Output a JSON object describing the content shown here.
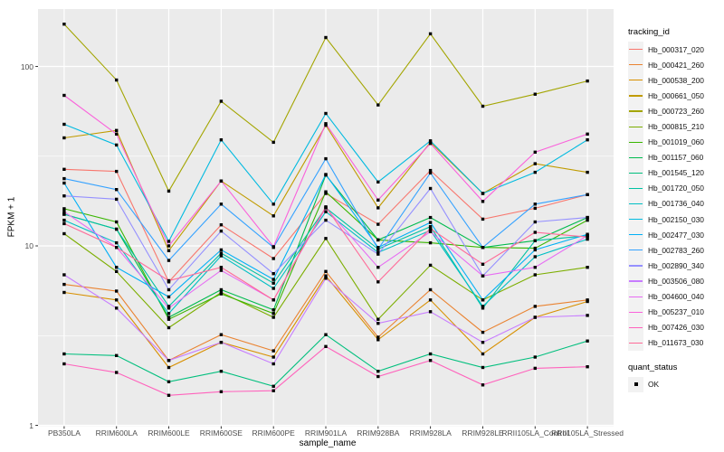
{
  "y_axis": {
    "title": "FPKM + 1",
    "ticks": [
      "1",
      "10",
      "100"
    ]
  },
  "x_axis": {
    "title": "sample_name"
  },
  "legend": {
    "color_title": "tracking_id",
    "shape_title": "quant_status",
    "shape_items": [
      {
        "label": "OK",
        "marker": "black-square"
      }
    ]
  },
  "style": {
    "panel_bg": "#EBEBEB",
    "grid_color": "#FFFFFF",
    "tick_color": "#333333",
    "tick_label_color": "#4D4D4D",
    "point_color": "#000000",
    "legend_key_bg": "#F2F2F2"
  },
  "chart_data": {
    "type": "line",
    "title": "",
    "xlabel": "sample_name",
    "ylabel": "FPKM + 1",
    "yscale": "log10",
    "ylim": [
      1,
      200
    ],
    "yticks": [
      1,
      10,
      100
    ],
    "ytick_labels": [
      "1",
      "10",
      "100"
    ],
    "minor_yticks": [
      3.162,
      31.62
    ],
    "grid": true,
    "legend_position": "right",
    "marker": "black-square",
    "x": [
      "PB350LA",
      "RRIM600LA",
      "RRIM600LE",
      "RRIM600SE",
      "RRIM600PE",
      "RRIM901LA",
      "RRIM928BA",
      "RRIM928LA",
      "RRIM928LE",
      "RRII105LA_Control",
      "RRII105LA_Stressed"
    ],
    "series": [
      {
        "name": "Hb_000317_020",
        "color": "#F8766D",
        "values": [
          26.7,
          26.0,
          6.3,
          13.1,
          8.5,
          19.6,
          13.2,
          26.3,
          14.1,
          16.2,
          19.3
        ]
      },
      {
        "name": "Hb_000421_260",
        "color": "#EA8331",
        "values": [
          6.1,
          5.6,
          2.3,
          3.2,
          2.6,
          7.2,
          3.1,
          5.7,
          3.3,
          4.6,
          5.0
        ]
      },
      {
        "name": "Hb_000538_200",
        "color": "#D89000",
        "values": [
          5.5,
          5.0,
          2.1,
          2.9,
          2.4,
          6.8,
          3.0,
          5.0,
          2.5,
          4.0,
          4.9
        ]
      },
      {
        "name": "Hb_000661_050",
        "color": "#C09B00",
        "values": [
          40.0,
          44.0,
          9.4,
          23.0,
          14.7,
          47.0,
          16.3,
          37.8,
          19.6,
          28.7,
          25.7
        ]
      },
      {
        "name": "Hb_000723_260",
        "color": "#A3A500",
        "values": [
          172.0,
          84.0,
          20.2,
          64.0,
          37.8,
          145.0,
          61.0,
          152.0,
          60.0,
          70.0,
          83.0
        ]
      },
      {
        "name": "Hb_000815_210",
        "color": "#7CAE00",
        "values": [
          11.7,
          7.2,
          3.5,
          5.5,
          4.0,
          11.0,
          3.9,
          7.8,
          5.0,
          6.9,
          7.6
        ]
      },
      {
        "name": "Hb_001019_060",
        "color": "#39B600",
        "values": [
          16.1,
          13.6,
          3.9,
          5.4,
          4.2,
          20.0,
          10.8,
          10.4,
          9.8,
          9.7,
          13.9
        ]
      },
      {
        "name": "Hb_001157_060",
        "color": "#00BB4E",
        "values": [
          15.0,
          12.4,
          4.0,
          5.7,
          4.4,
          24.8,
          10.8,
          14.4,
          9.8,
          10.7,
          14.4
        ]
      },
      {
        "name": "Hb_001545_120",
        "color": "#00BF7D",
        "values": [
          2.5,
          2.45,
          1.75,
          2.0,
          1.65,
          3.2,
          2.0,
          2.5,
          2.1,
          2.4,
          2.95
        ]
      },
      {
        "name": "Hb_001720_050",
        "color": "#00C1A3",
        "values": [
          15.0,
          12.4,
          4.6,
          9.1,
          6.2,
          16.3,
          9.6,
          12.8,
          4.5,
          10.7,
          11.4
        ]
      },
      {
        "name": "Hb_001736_040",
        "color": "#00BFC4",
        "values": [
          13.9,
          10.4,
          4.2,
          8.8,
          5.8,
          15.5,
          9.2,
          12.2,
          4.6,
          8.7,
          10.9
        ]
      },
      {
        "name": "Hb_002150_030",
        "color": "#00BAE0",
        "values": [
          47.6,
          36.5,
          10.6,
          39.0,
          17.1,
          54.7,
          22.7,
          38.5,
          19.6,
          25.7,
          39.0
        ]
      },
      {
        "name": "Hb_002477_030",
        "color": "#00B0F6",
        "values": [
          22.4,
          7.6,
          5.2,
          9.5,
          6.5,
          25.0,
          9.8,
          13.5,
          5.0,
          9.5,
          11.6
        ]
      },
      {
        "name": "Hb_002783_260",
        "color": "#35A2FF",
        "values": [
          23.7,
          20.6,
          8.3,
          17.1,
          9.8,
          30.6,
          9.6,
          25.5,
          9.8,
          17.1,
          19.3
        ]
      },
      {
        "name": "Hb_002890_340",
        "color": "#9590FF",
        "values": [
          19.0,
          18.2,
          5.7,
          12.1,
          7.0,
          13.9,
          9.0,
          20.9,
          6.8,
          13.6,
          14.4
        ]
      },
      {
        "name": "Hb_003506_080",
        "color": "#C77CFF",
        "values": [
          6.9,
          4.5,
          2.3,
          2.9,
          2.2,
          6.6,
          3.7,
          4.3,
          2.9,
          4.0,
          4.1
        ]
      },
      {
        "name": "Hb_004600_040",
        "color": "#E76BF3",
        "values": [
          15.5,
          9.8,
          4.5,
          7.3,
          5.0,
          16.3,
          7.6,
          12.0,
          6.8,
          7.6,
          11.4
        ]
      },
      {
        "name": "Hb_005237_010",
        "color": "#FA62DB",
        "values": [
          69.0,
          42.0,
          10.0,
          23.0,
          9.9,
          48.0,
          18.0,
          37.2,
          17.7,
          33.3,
          42.0
        ]
      },
      {
        "name": "Hb_007426_030",
        "color": "#FF62BC",
        "values": [
          2.2,
          1.97,
          1.47,
          1.54,
          1.56,
          2.75,
          1.87,
          2.3,
          1.68,
          2.08,
          2.12
        ]
      },
      {
        "name": "Hb_011673_030",
        "color": "#FF6A98",
        "values": [
          13.3,
          9.8,
          6.4,
          7.6,
          5.0,
          16.5,
          6.3,
          12.5,
          7.9,
          11.9,
          11.2
        ]
      }
    ]
  }
}
